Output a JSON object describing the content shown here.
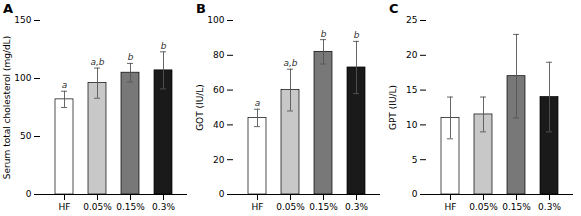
{
  "chart_data": [
    {
      "type": "bar",
      "title": "A",
      "ylabel": "Serum total cholesterol (mg/dL)",
      "categories": [
        "HF",
        "0.05%",
        "0.15%",
        "0.3%"
      ],
      "values": [
        82,
        96,
        105,
        107
      ],
      "errors": [
        7,
        13,
        8,
        16
      ],
      "annotations": [
        "a",
        "a,b",
        "b",
        "b"
      ],
      "colors": [
        "#ffffff",
        "#c8c8c8",
        "#787878",
        "#1a1a1a"
      ],
      "ylim": [
        0,
        150
      ],
      "yticks": [
        0,
        50,
        100,
        150
      ]
    },
    {
      "type": "bar",
      "title": "B",
      "ylabel": "GOT (IU/L)",
      "categories": [
        "HF",
        "0.05%",
        "0.15%",
        "0.3%"
      ],
      "values": [
        44,
        60,
        82,
        73
      ],
      "errors": [
        5,
        12,
        7,
        15
      ],
      "annotations": [
        "a",
        "a,b",
        "b",
        "b"
      ],
      "colors": [
        "#ffffff",
        "#c8c8c8",
        "#787878",
        "#1a1a1a"
      ],
      "ylim": [
        0,
        100
      ],
      "yticks": [
        0,
        20,
        40,
        60,
        80,
        100
      ]
    },
    {
      "type": "bar",
      "title": "C",
      "ylabel": "GPT (IU/L)",
      "categories": [
        "HF",
        "0.05%",
        "0.15%",
        "0.3%"
      ],
      "values": [
        11,
        11.5,
        17,
        14
      ],
      "errors": [
        3,
        2.5,
        6,
        5
      ],
      "colors": [
        "#ffffff",
        "#c8c8c8",
        "#787878",
        "#1a1a1a"
      ],
      "ylim": [
        0,
        25
      ],
      "yticks": [
        0,
        5,
        10,
        15,
        20,
        25
      ]
    }
  ]
}
